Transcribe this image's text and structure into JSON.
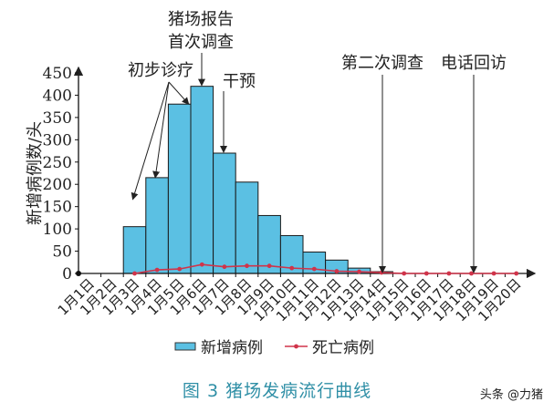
{
  "chart_data": {
    "type": "bar",
    "title": "",
    "xlabel": "",
    "ylabel": "新增病例数/头",
    "ylim": [
      0,
      450
    ],
    "yticks": [
      0,
      50,
      100,
      150,
      200,
      250,
      300,
      350,
      400,
      450
    ],
    "categories": [
      "1月1日",
      "1月2日",
      "1月3日",
      "1月4日",
      "1月5日",
      "1月6日",
      "1月7日",
      "1月8日",
      "1月9日",
      "1月10日",
      "1月11日",
      "1月12日",
      "1月13日",
      "1月14日",
      "1月15日",
      "1月16日",
      "1月17日",
      "1月18日",
      "1月19日",
      "1月20日"
    ],
    "series": [
      {
        "name": "新增病例",
        "type": "bar",
        "color": "#5bc0e3",
        "values": [
          0,
          0,
          105,
          215,
          380,
          420,
          270,
          205,
          130,
          85,
          48,
          30,
          12,
          4,
          0,
          0,
          0,
          0,
          0,
          0
        ]
      },
      {
        "name": "死亡病例",
        "type": "line",
        "color": "#d0344a",
        "values": [
          null,
          null,
          0,
          8,
          10,
          20,
          15,
          17,
          17,
          12,
          10,
          5,
          4,
          2,
          0,
          0,
          0,
          0,
          0,
          0
        ]
      }
    ],
    "annotations": [
      {
        "text": "初步诊疗",
        "targets": [
          "1月3日",
          "1月4日",
          "1月5日"
        ]
      },
      {
        "lines": [
          "猪场报告",
          "首次调查"
        ],
        "target": "1月6日"
      },
      {
        "text": "干预",
        "target": "1月7日"
      },
      {
        "text": "第二次调查",
        "target": "1月14日"
      },
      {
        "text": "电话回访",
        "target": "1月18日"
      }
    ],
    "legend_placement": "bottom"
  },
  "caption": "图 3    猪场发病流行曲线",
  "watermark": "头条 @力猪"
}
